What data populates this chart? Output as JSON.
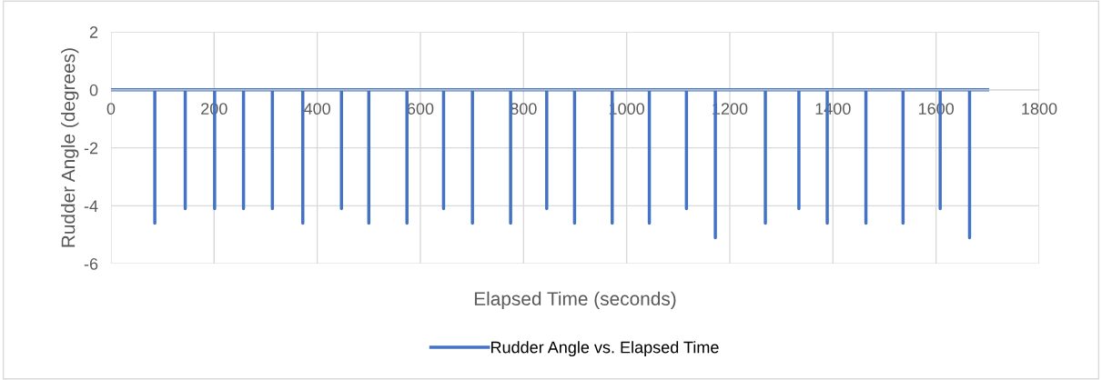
{
  "chart_data": {
    "type": "line",
    "xlabel": "Elapsed Time (seconds)",
    "ylabel": "Rudder Angle (degrees)",
    "x": [
      0,
      85,
      85,
      85,
      144,
      144,
      144,
      201,
      201,
      201,
      257,
      257,
      257,
      313,
      313,
      313,
      372,
      372,
      372,
      447,
      447,
      447,
      500,
      500,
      500,
      574,
      574,
      574,
      645,
      645,
      645,
      701,
      701,
      701,
      775,
      775,
      775,
      845,
      845,
      845,
      899,
      899,
      899,
      972,
      972,
      972,
      1044,
      1044,
      1044,
      1116,
      1116,
      1116,
      1172,
      1172,
      1172,
      1269,
      1269,
      1269,
      1334,
      1334,
      1334,
      1389,
      1389,
      1389,
      1464,
      1464,
      1464,
      1536,
      1536,
      1536,
      1608,
      1608,
      1608,
      1665,
      1665,
      1665,
      1700
    ],
    "series": [
      {
        "name": "Rudder Angle vs. Elapsed Time",
        "color": "#4472c4",
        "values": [
          0,
          0,
          -4.6,
          0,
          0,
          -4.1,
          0,
          0,
          -4.1,
          0,
          0,
          -4.1,
          0,
          0,
          -4.1,
          0,
          0,
          -4.6,
          0,
          0,
          -4.1,
          0,
          0,
          -4.6,
          0,
          0,
          -4.6,
          0,
          0,
          -4.1,
          0,
          0,
          -4.6,
          0,
          0,
          -4.6,
          0,
          0,
          -4.1,
          0,
          0,
          -4.6,
          0,
          0,
          -4.6,
          0,
          0,
          -4.6,
          0,
          0,
          -4.1,
          0,
          0,
          -5.1,
          0,
          0,
          -4.6,
          0,
          0,
          -4.1,
          0,
          0,
          -4.6,
          0,
          0,
          -4.6,
          0,
          0,
          -4.6,
          0,
          0,
          -4.1,
          0,
          0,
          -5.1,
          0,
          0
        ]
      }
    ],
    "xlim": [
      0,
      1800
    ],
    "xticks": [
      0,
      200,
      400,
      600,
      800,
      1000,
      1200,
      1400,
      1600,
      1800
    ],
    "ylim": [
      -6,
      2
    ],
    "yticks": [
      -6,
      -4,
      -2,
      0,
      2
    ],
    "grid": true,
    "legend": "bottom",
    "marker": "none",
    "line_style": "solid"
  }
}
